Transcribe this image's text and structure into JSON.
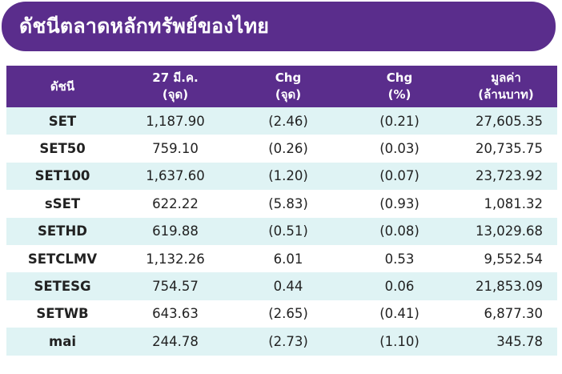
{
  "title": "ดัชนีตลาดหลักทรัพย์ของไทย",
  "headers": {
    "index": [
      "ดัชนี"
    ],
    "close": [
      "27 มี.ค.",
      "(จุด)"
    ],
    "chg_pts": [
      "Chg",
      "(จุด)"
    ],
    "chg_pct": [
      "Chg",
      "(%)"
    ],
    "value": [
      "มูลค่า",
      "(ล้านบาท)"
    ]
  },
  "rows": [
    {
      "index": "SET",
      "close": "1,187.90",
      "chg_pts": "(2.46)",
      "chg_pct": "(0.21)",
      "value": "27,605.35"
    },
    {
      "index": "SET50",
      "close": "759.10",
      "chg_pts": "(0.26)",
      "chg_pct": "(0.03)",
      "value": "20,735.75"
    },
    {
      "index": "SET100",
      "close": "1,637.60",
      "chg_pts": "(1.20)",
      "chg_pct": "(0.07)",
      "value": "23,723.92"
    },
    {
      "index": "sSET",
      "close": "622.22",
      "chg_pts": "(5.83)",
      "chg_pct": "(0.93)",
      "value": "1,081.32"
    },
    {
      "index": "SETHD",
      "close": "619.88",
      "chg_pts": "(0.51)",
      "chg_pct": "(0.08)",
      "value": "13,029.68"
    },
    {
      "index": "SETCLMV",
      "close": "1,132.26",
      "chg_pts": "6.01",
      "chg_pct": "0.53",
      "value": "9,552.54"
    },
    {
      "index": "SETESG",
      "close": "754.57",
      "chg_pts": "0.44",
      "chg_pct": "0.06",
      "value": "21,853.09"
    },
    {
      "index": "SETWB",
      "close": "643.63",
      "chg_pts": "(2.65)",
      "chg_pct": "(0.41)",
      "value": "6,877.30"
    },
    {
      "index": "mai",
      "close": "244.78",
      "chg_pts": "(2.73)",
      "chg_pct": "(1.10)",
      "value": "345.78"
    }
  ],
  "colors": {
    "header_bg": "#5a2d8c",
    "header_text": "#ffffff",
    "stripe_bg": "#dff3f4",
    "row_bg": "#ffffff"
  }
}
